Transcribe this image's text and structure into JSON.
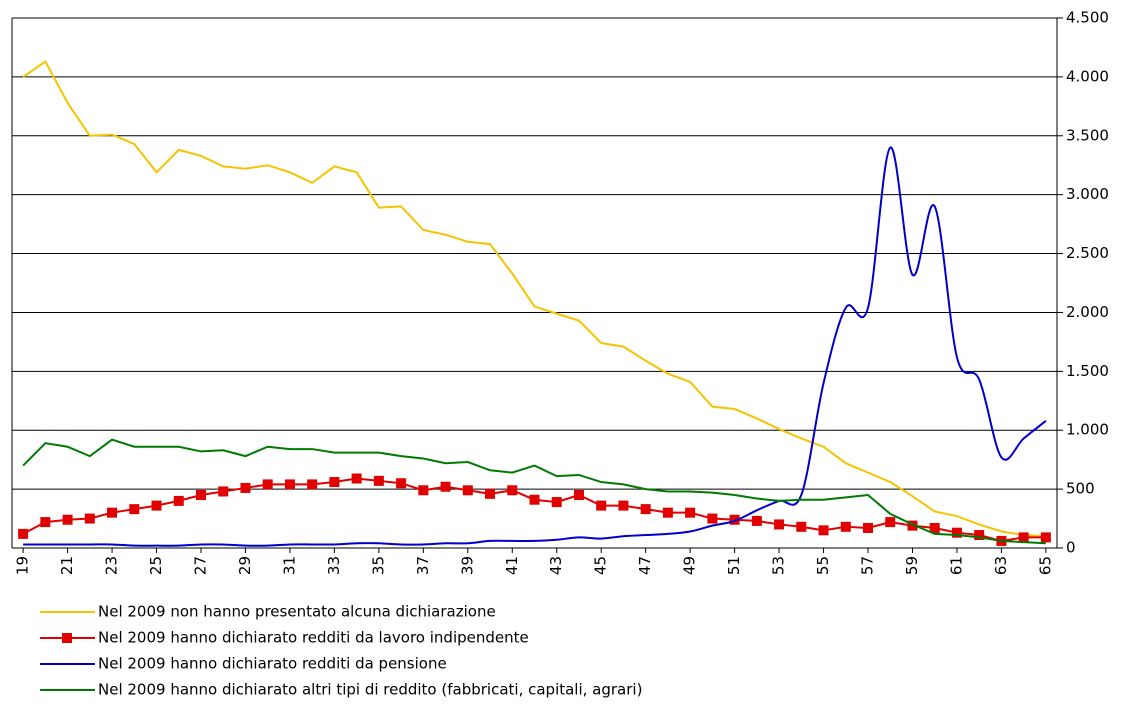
{
  "chart_data": {
    "type": "line",
    "x": [
      19,
      20,
      21,
      22,
      23,
      24,
      25,
      26,
      27,
      28,
      29,
      30,
      31,
      32,
      33,
      34,
      35,
      36,
      37,
      38,
      39,
      40,
      41,
      42,
      43,
      44,
      45,
      46,
      47,
      48,
      49,
      50,
      51,
      52,
      53,
      54,
      55,
      56,
      57,
      58,
      59,
      60,
      61,
      62,
      63,
      64,
      65
    ],
    "xlim": [
      18.5,
      65.5
    ],
    "xticks": [
      19,
      21,
      23,
      25,
      27,
      29,
      31,
      33,
      35,
      37,
      39,
      41,
      43,
      45,
      47,
      49,
      51,
      53,
      55,
      57,
      59,
      61,
      63,
      65
    ],
    "ylim": [
      0,
      4500
    ],
    "yticks": [
      0,
      500,
      {
        "value": 1000,
        "label": "1.000"
      },
      {
        "value": 1500,
        "label": "1.500"
      },
      {
        "value": 2000,
        "label": "2.000"
      },
      {
        "value": 2500,
        "label": "2.500"
      },
      {
        "value": 3000,
        "label": "3.000"
      },
      {
        "value": 3500,
        "label": "3.500"
      },
      {
        "value": 4000,
        "label": "4.000"
      },
      {
        "value": 4500,
        "label": "4.500"
      }
    ],
    "grid": true,
    "legend": "bottom",
    "series": [
      {
        "name": "Nel 2009 non hanno presentato alcuna dichiarazione",
        "color": "#f5c400",
        "marker": "none",
        "values": [
          4000,
          4130,
          3780,
          3500,
          3510,
          3430,
          3190,
          3380,
          3330,
          3240,
          3220,
          3250,
          3190,
          3100,
          3240,
          3190,
          2890,
          2900,
          2700,
          2660,
          2600,
          2580,
          2330,
          2050,
          1990,
          1930,
          1740,
          1710,
          1590,
          1480,
          1410,
          1200,
          1180,
          1100,
          1010,
          930,
          860,
          720,
          640,
          560,
          440,
          310,
          270,
          200,
          140,
          110,
          100
        ]
      },
      {
        "name": "Nel 2009 hanno dichiarato redditi da lavoro indipendente",
        "color": "#e00000",
        "marker": "square",
        "values": [
          120,
          220,
          240,
          250,
          300,
          330,
          360,
          400,
          450,
          480,
          510,
          540,
          540,
          540,
          560,
          590,
          570,
          550,
          490,
          520,
          490,
          460,
          490,
          410,
          390,
          450,
          360,
          360,
          330,
          300,
          300,
          250,
          240,
          230,
          200,
          180,
          150,
          180,
          170,
          220,
          190,
          170,
          130,
          110,
          60,
          90,
          90
        ]
      },
      {
        "name": "Nel 2009 hanno dichiarato redditi da pensione",
        "color": "#0000cc",
        "marker": "none",
        "smooth": true,
        "values": [
          30,
          30,
          30,
          30,
          30,
          20,
          20,
          20,
          30,
          30,
          20,
          20,
          30,
          30,
          30,
          40,
          40,
          30,
          30,
          40,
          40,
          60,
          60,
          60,
          70,
          90,
          80,
          100,
          110,
          120,
          140,
          190,
          230,
          320,
          400,
          450,
          1400,
          2040,
          2040,
          3400,
          2320,
          2900,
          1620,
          1430,
          770,
          930,
          1080
        ]
      },
      {
        "name": "Nel 2009 hanno dichiarato altri tipi di reddito (fabbricati, capitali, agrari)",
        "color": "#007a00",
        "marker": "none",
        "values": [
          700,
          890,
          860,
          780,
          920,
          860,
          860,
          860,
          820,
          830,
          780,
          860,
          840,
          840,
          810,
          810,
          810,
          780,
          760,
          720,
          730,
          660,
          640,
          700,
          610,
          620,
          560,
          540,
          500,
          480,
          480,
          470,
          450,
          420,
          400,
          410,
          410,
          430,
          450,
          290,
          200,
          120,
          110,
          90,
          60,
          50,
          40
        ]
      }
    ]
  }
}
